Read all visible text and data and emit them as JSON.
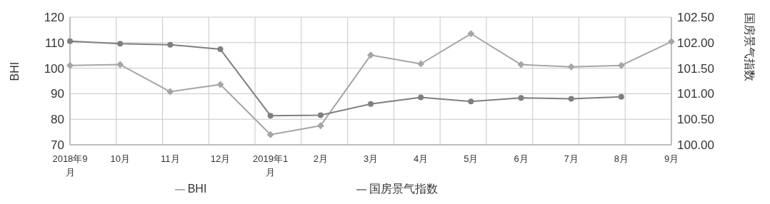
{
  "chart_data": {
    "type": "line",
    "ylabel": "BHI",
    "y2label": "国房景气指数",
    "categories": [
      "2018年9月",
      "10月",
      "11月",
      "12月",
      "2019年1月",
      "2月",
      "3月",
      "4月",
      "5月",
      "6月",
      "7月",
      "8月",
      "9月"
    ],
    "series": [
      {
        "name": "BHI",
        "color": "#a6a6a6",
        "marker": "diamond",
        "values": [
          101.1,
          101.4,
          90.8,
          93.6,
          74.0,
          77.5,
          105.1,
          101.7,
          113.5,
          101.4,
          100.5,
          101.1,
          110.4
        ]
      },
      {
        "name": "国房景气指数",
        "color": "#7f7f7f",
        "marker": "circle",
        "axis": "y2",
        "values": [
          102.03,
          101.98,
          101.96,
          101.87,
          100.57,
          100.58,
          100.8,
          100.93,
          100.85,
          100.92,
          100.9,
          100.94,
          null
        ]
      }
    ],
    "ylim": [
      70,
      120
    ],
    "yticks": [
      70,
      80,
      90,
      100,
      110,
      120
    ],
    "y2lim": [
      100,
      102.5
    ],
    "y2ticks": [
      {
        "value": 100,
        "label": "100.00"
      },
      {
        "value": 100.5,
        "label": "100.50"
      },
      {
        "value": 101,
        "label": "101.00"
      },
      {
        "value": 101.5,
        "label": "101.50"
      },
      {
        "value": 102,
        "label": "102.00"
      },
      {
        "value": 102.5,
        "label": "102.50"
      }
    ],
    "grid": true,
    "legend": "bottom",
    "line_style": "solid"
  }
}
